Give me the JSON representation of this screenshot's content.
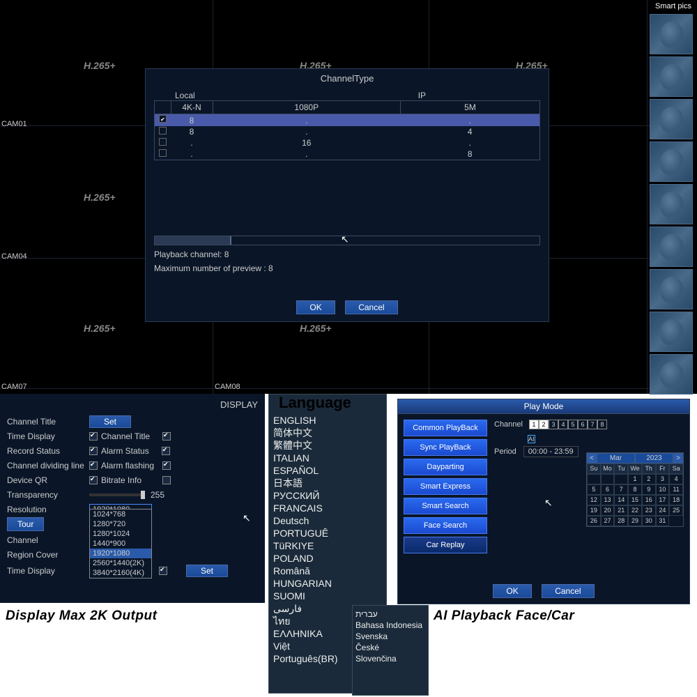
{
  "dvr": {
    "codec": "H.265+",
    "cams": [
      "CAM01",
      "CAM04",
      "CAM07",
      "CAM08"
    ],
    "smart_header": "Smart pics"
  },
  "channel_modal": {
    "title": "ChannelType",
    "headers": {
      "local": "Local",
      "ip": "IP",
      "4kn": "4K-N",
      "p1080": "1080P",
      "m5": "5M"
    },
    "rows": [
      {
        "checked": true,
        "c1": "8",
        "c2": ".",
        "c3": "."
      },
      {
        "checked": false,
        "c1": "8",
        "c2": ".",
        "c3": "4"
      },
      {
        "checked": false,
        "c1": ".",
        "c2": "16",
        "c3": "."
      },
      {
        "checked": false,
        "c1": ".",
        "c2": ".",
        "c3": "8"
      }
    ],
    "playback_label": "Playback channel: 8",
    "preview_label": "Maximum number of preview   : 8",
    "ok": "OK",
    "cancel": "Cancel"
  },
  "display": {
    "title": "DISPLAY",
    "labels": {
      "channel_title": "Channel Title",
      "time_display": "Time Display",
      "record_status": "Record Status",
      "dividing": "Channel dividing line",
      "device_qr": "Device QR",
      "transparency": "Transparency",
      "resolution": "Resolution",
      "channel": "Channel",
      "region_cover": "Region Cover",
      "time_display2": "Time Display"
    },
    "set": "Set",
    "tour": "Tour",
    "cb_labels": {
      "ct": "Channel Title",
      "as": "Alarm Status",
      "af": "Alarm flashing",
      "bi": "Bitrate Info"
    },
    "trans_val": "255",
    "res_selected": "1920*1080",
    "res_options": [
      "1024*768",
      "1280*720",
      "1280*1024",
      "1440*900",
      "1920*1080",
      "2560*1440(2K)",
      "3840*2160(4K)"
    ],
    "caption": "Display Max 2K Output"
  },
  "language": {
    "header": "Language",
    "list": [
      "ENGLISH",
      "简体中文",
      "繁體中文",
      "ITALIAN",
      "ESPAÑOL",
      "日本語",
      "РУССКИЙ",
      "FRANCAIS",
      "Deutsch",
      "PORTUGUÊ",
      "TüRKIYE",
      "POLAND",
      "Română",
      "HUNGARIAN",
      "SUOMI",
      "فارسی",
      "ไทย",
      "ΕΛΛΗΝΙΚΑ",
      "Việt",
      "Português(BR)"
    ],
    "list2": [
      "עברית",
      "Bahasa Indonesia",
      "",
      "Svenska",
      "České",
      "Slovenčina"
    ]
  },
  "play": {
    "title": "Play Mode",
    "buttons": [
      "Common PlayBack",
      "Sync PlayBack",
      "Dayparting",
      "Smart Express",
      "Smart Search",
      "Face Search",
      "Car Replay"
    ],
    "channel_label": "Channel",
    "period_label": "Period",
    "period_val": "00:00    -    23:59",
    "ai": "AI",
    "cal": {
      "month": "Mar",
      "year": "2023",
      "dow": [
        "Su",
        "Mo",
        "Tu",
        "We",
        "Th",
        "Fr",
        "Sa"
      ]
    },
    "ok": "OK",
    "cancel": "Cancel",
    "caption": "AI Playback Face/Car"
  }
}
